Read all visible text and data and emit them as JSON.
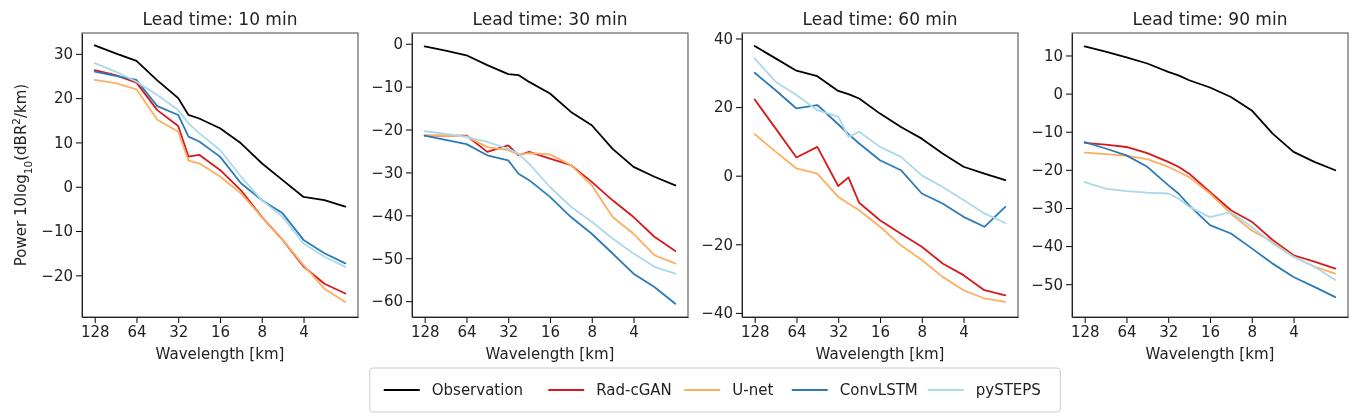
{
  "chart_data": [
    {
      "type": "line",
      "title": "Lead time: 10 min",
      "xlabel": "Wavelength [km]",
      "ylabel": "Power 10log$_{10}$(dBR$^{2}$/km)",
      "log": "x",
      "legend": "bottom",
      "x": [
        128,
        90.5,
        64,
        45.3,
        32,
        27,
        22.6,
        16,
        11.3,
        8,
        5.66,
        4,
        2.83,
        2
      ],
      "xlim": [
        158,
        1.62
      ],
      "xticks": [
        128,
        64,
        32,
        16,
        8,
        4
      ],
      "ylim": [
        -29.4,
        34.7
      ],
      "yticks": [
        {
          "value": -20,
          "label": "−20"
        },
        {
          "value": -10,
          "label": "−10"
        },
        0,
        10,
        20,
        30
      ],
      "series": [
        {
          "name": "Observation",
          "color": "#000000",
          "values": [
            31.9,
            30.1,
            28.4,
            24,
            20,
            16.2,
            15.4,
            13.2,
            9.8,
            5.3,
            1.5,
            -2.3,
            -3,
            -4.5
          ]
        },
        {
          "name": "Rad-cGAN",
          "color": "#d7191c",
          "values": [
            26.3,
            25.2,
            23.5,
            17.3,
            13.7,
            6.8,
            7.2,
            3.8,
            -0.8,
            -6.8,
            -12,
            -18,
            -21.9,
            -24.1
          ]
        },
        {
          "name": "U-net",
          "color": "#fdae61",
          "values": [
            24.1,
            23.4,
            22,
            15.1,
            12.4,
            5.9,
            5.3,
            2.3,
            -1.5,
            -6.8,
            -12,
            -17.7,
            -23,
            -26
          ]
        },
        {
          "name": "ConvLSTM",
          "color": "#2c7bb6",
          "values": [
            26,
            25,
            24.1,
            18.2,
            16.2,
            11.3,
            10.2,
            6.8,
            0.8,
            -3,
            -6,
            -12,
            -15,
            -17.3
          ]
        },
        {
          "name": "pySTEPS",
          "color": "#abd9e9",
          "values": [
            27.9,
            26,
            23.7,
            20.7,
            17.3,
            14.3,
            12.1,
            8.3,
            2.3,
            -3,
            -6.8,
            -12.8,
            -15.8,
            -18.1
          ]
        }
      ]
    },
    {
      "type": "line",
      "title": "Lead time: 30 min",
      "xlabel": "Wavelength [km]",
      "log": "x",
      "x": [
        128,
        90.5,
        64,
        45.3,
        32,
        27,
        22.6,
        16,
        11.3,
        8,
        5.66,
        4,
        2.83,
        2
      ],
      "xlim": [
        158,
        1.62
      ],
      "xticks": [
        128,
        64,
        32,
        16,
        8,
        4
      ],
      "ylim": [
        -63.7,
        2.5
      ],
      "yticks": [
        {
          "value": -60,
          "label": "−60"
        },
        {
          "value": -50,
          "label": "−50"
        },
        {
          "value": -40,
          "label": "−40"
        },
        {
          "value": -30,
          "label": "−30"
        },
        {
          "value": -20,
          "label": "−20"
        },
        {
          "value": -10,
          "label": "−10"
        },
        0
      ],
      "series": [
        {
          "color": "#000000",
          "values": [
            -0.6,
            -1.6,
            -2.7,
            -5,
            -7.1,
            -7.3,
            -8.9,
            -11.6,
            -15.9,
            -19,
            -24.5,
            -28.7,
            -31,
            -33
          ]
        },
        {
          "color": "#d7191c",
          "values": [
            -21.4,
            -21.4,
            -21.4,
            -25.2,
            -23.7,
            -26,
            -25.2,
            -26.8,
            -28.3,
            -32.2,
            -36.5,
            -40.4,
            -45,
            -48.3
          ]
        },
        {
          "color": "#fdae61",
          "values": [
            -21.4,
            -21.4,
            -21.6,
            -24.1,
            -24.8,
            -25.8,
            -25.5,
            -25.8,
            -28.3,
            -33,
            -40.4,
            -44.3,
            -49.3,
            -51.2
          ]
        },
        {
          "color": "#2c7bb6",
          "values": [
            -21.4,
            -22.4,
            -23.4,
            -26,
            -27.2,
            -30.3,
            -31.8,
            -35.7,
            -40.4,
            -44.3,
            -48.9,
            -53.6,
            -56.7,
            -60.6
          ]
        },
        {
          "color": "#abd9e9",
          "values": [
            -20.4,
            -21,
            -21.7,
            -22.9,
            -24.5,
            -25.6,
            -28,
            -33.4,
            -38,
            -41.5,
            -45.4,
            -48.9,
            -52,
            -53.6
          ]
        }
      ]
    },
    {
      "type": "line",
      "title": "Lead time: 60 min",
      "xlabel": "Wavelength [km]",
      "log": "x",
      "x": [
        128,
        90.5,
        64,
        45.3,
        32,
        27,
        22.6,
        16,
        11.3,
        8,
        5.66,
        4,
        2.83,
        2
      ],
      "xlim": [
        158,
        1.62
      ],
      "xticks": [
        128,
        64,
        32,
        16,
        8,
        4
      ],
      "ylim": [
        -41.2,
        41.6
      ],
      "yticks": [
        {
          "value": -40,
          "label": "−40"
        },
        {
          "value": -20,
          "label": "−20"
        },
        0,
        20,
        40
      ],
      "series": [
        {
          "color": "#000000",
          "values": [
            37.8,
            34.2,
            30.6,
            29,
            24.7,
            23.8,
            22.5,
            18.1,
            14.2,
            10.8,
            6.5,
            2.6,
            0.6,
            -1.3
          ]
        },
        {
          "color": "#d7191c",
          "values": [
            22.2,
            13.8,
            5.3,
            8.4,
            -3,
            -0.5,
            -7.9,
            -13,
            -16.9,
            -20.7,
            -25.6,
            -29,
            -33.4,
            -34.9
          ]
        },
        {
          "color": "#fdae61",
          "values": [
            12.1,
            7,
            2.1,
            0.6,
            -6.2,
            -8.1,
            -10.1,
            -14.9,
            -20.3,
            -24.6,
            -29.5,
            -33.4,
            -35.8,
            -36.8
          ]
        },
        {
          "color": "#2c7bb6",
          "values": [
            30,
            24.9,
            19.6,
            20.6,
            15,
            12.1,
            9.4,
            4.5,
            1.6,
            -5.2,
            -8.1,
            -12,
            -14.9,
            -9.1
          ]
        },
        {
          "color": "#abd9e9",
          "values": [
            34.2,
            27.4,
            23.5,
            19.1,
            17.2,
            11.3,
            12.8,
            8.4,
            5.5,
            0.1,
            -3.3,
            -7.1,
            -11,
            -13.8
          ]
        }
      ]
    },
    {
      "type": "line",
      "title": "Lead time: 90 min",
      "xlabel": "Wavelength [km]",
      "log": "x",
      "x": [
        128,
        90.5,
        64,
        45.3,
        32,
        27,
        22.6,
        16,
        11.3,
        8,
        5.66,
        4,
        2.83,
        2
      ],
      "xlim": [
        158,
        1.62
      ],
      "xticks": [
        128,
        64,
        32,
        16,
        8,
        4
      ],
      "ylim": [
        -58.6,
        15.9
      ],
      "yticks": [
        {
          "value": -50,
          "label": "−50"
        },
        {
          "value": -40,
          "label": "−40"
        },
        {
          "value": -30,
          "label": "−30"
        },
        {
          "value": -20,
          "label": "−20"
        },
        {
          "value": -10,
          "label": "−10"
        },
        0,
        10
      ],
      "series": [
        {
          "color": "#000000",
          "values": [
            12.4,
            11,
            9.5,
            7.9,
            5.7,
            4.8,
            3.5,
            1.6,
            -0.9,
            -4.4,
            -10.5,
            -15.3,
            -17.9,
            -20.1
          ]
        },
        {
          "color": "#d7191c",
          "values": [
            -12.9,
            -13.4,
            -14,
            -15.6,
            -17.9,
            -19.2,
            -21,
            -25.8,
            -30.6,
            -33.6,
            -38.4,
            -42.4,
            -44.1,
            -45.9
          ]
        },
        {
          "color": "#fdae61",
          "values": [
            -15.5,
            -15.9,
            -16.3,
            -17.2,
            -19.2,
            -20.5,
            -21.9,
            -26.2,
            -31.5,
            -35.9,
            -38.9,
            -42.8,
            -45.4,
            -47.2
          ]
        },
        {
          "color": "#2c7bb6",
          "values": [
            -12.7,
            -14.4,
            -16.2,
            -19.2,
            -24,
            -26.2,
            -29.3,
            -34.5,
            -36.7,
            -40.6,
            -44.6,
            -48.1,
            -50.7,
            -53.4
          ]
        },
        {
          "color": "#abd9e9",
          "values": [
            -23.2,
            -24.9,
            -25.6,
            -26,
            -26.2,
            -27.5,
            -29.7,
            -32.4,
            -31.1,
            -35,
            -39.3,
            -42.8,
            -45.4,
            -48.9
          ]
        }
      ]
    }
  ]
}
